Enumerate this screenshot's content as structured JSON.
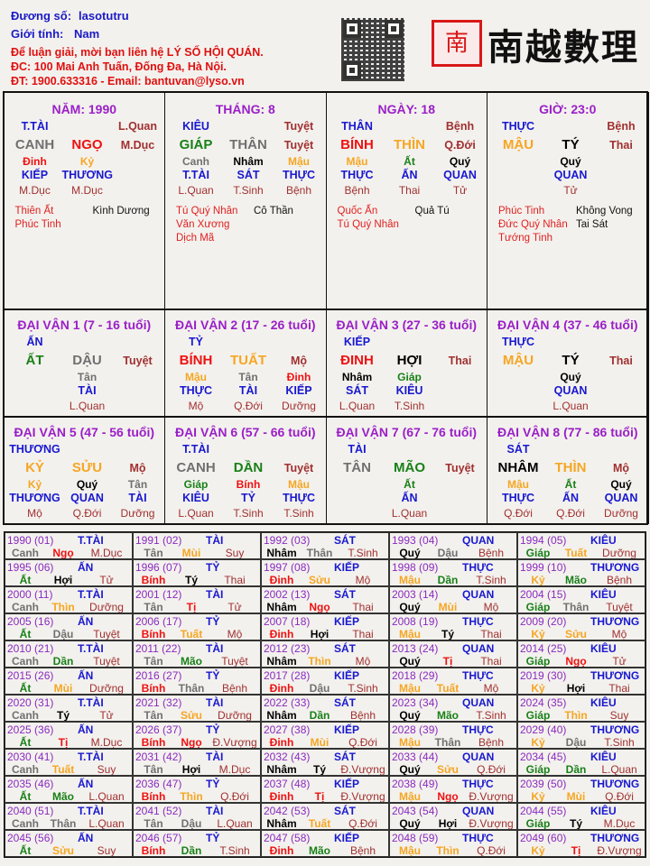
{
  "header": {
    "chart_name_label": "Đương số:",
    "chart_name": "lasotutru",
    "gender_label": "Giới tính:",
    "gender": "Nam",
    "contact": [
      "Để luận giải, mời bạn liên hệ LÝ SỐ HỘI QUÁN.",
      "ĐC: 100 Mai Anh Tuấn, Đống Đa, Hà Nội.",
      "ĐT: 1900.633316 - Email: bantuvan@lyso.vn"
    ]
  },
  "logo": {
    "text": "南越數理",
    "seal": "南"
  },
  "colors": {
    "title": "#9a1fc8",
    "god": "#1818d0",
    "phase": "#a03030",
    "good_star": "#e02020",
    "year_label": "#8a2ac0"
  },
  "element_colors": {
    "metal": "#707070",
    "wood": "#188018",
    "fire": "#ee1111",
    "earth": "#f5a623",
    "water": "#000000"
  },
  "elements": {
    "canh": "metal",
    "tân": "metal",
    "thân": "metal",
    "dậu": "metal",
    "giáp": "wood",
    "ất": "wood",
    "dần": "wood",
    "mão": "wood",
    "bính": "fire",
    "đinh": "fire",
    "ngọ": "fire",
    "tị": "fire",
    "mậu": "earth",
    "kỷ": "earth",
    "thìn": "earth",
    "tuất": "earth",
    "sửu": "earth",
    "mùi": "earth",
    "nhâm": "water",
    "quý": "water",
    "tý": "water",
    "hợi": "water"
  },
  "pillars": [
    {
      "title": "NĂM: 1990",
      "god": "T.TÀI",
      "phase_top": "L.Quan",
      "stem": "CANH",
      "branch": "NGỌ",
      "phase": "M.Dục",
      "hidden": [
        "Đinh",
        "Kỷ",
        ""
      ],
      "hidden_gods": [
        "KIẾP",
        "THƯƠNG",
        ""
      ],
      "hidden_phases": [
        "M.Dục",
        "M.Dục",
        ""
      ],
      "stars_good": [
        "Thiên Ất",
        "Phúc Tinh"
      ],
      "stars_bad": [
        "Kình Dương"
      ]
    },
    {
      "title": "THÁNG: 8",
      "god": "KIÊU",
      "phase_top": "Tuyệt",
      "stem": "GIÁP",
      "branch": "THÂN",
      "phase": "Tuyệt",
      "hidden": [
        "Canh",
        "Nhâm",
        "Mậu"
      ],
      "hidden_gods": [
        "T.TÀI",
        "SÁT",
        "THỰC"
      ],
      "hidden_phases": [
        "L.Quan",
        "T.Sinh",
        "Bệnh"
      ],
      "stars_good": [
        "Tú Quý Nhân",
        "Văn Xương",
        "Dịch Mã"
      ],
      "stars_bad": [
        "Cô Thần"
      ]
    },
    {
      "title": "NGÀY: 18",
      "god": "THÂN",
      "phase_top": "Bệnh",
      "stem": "BÍNH",
      "branch": "THÌN",
      "phase": "Q.Đới",
      "hidden": [
        "Mậu",
        "Ất",
        "Quý"
      ],
      "hidden_gods": [
        "THỰC",
        "ẤN",
        "QUAN"
      ],
      "hidden_phases": [
        "Bệnh",
        "Thai",
        "Tử"
      ],
      "stars_good": [
        "Quốc Ấn",
        "Tú Quý Nhân"
      ],
      "stars_bad": [
        "Quả Tú"
      ]
    },
    {
      "title": "GIỜ: 23:0",
      "god": "THỰC",
      "phase_top": "Bệnh",
      "stem": "MẬU",
      "branch": "TÝ",
      "phase": "Thai",
      "hidden": [
        "",
        "Quý",
        ""
      ],
      "hidden_gods": [
        "",
        "QUAN",
        ""
      ],
      "hidden_phases": [
        "",
        "Tử",
        ""
      ],
      "stars_good": [
        "Phúc Tinh",
        "Đức Quý Nhân",
        "Tướng Tinh"
      ],
      "stars_bad": [
        "Không Vong",
        "Tai Sát"
      ]
    }
  ],
  "dai_van": [
    {
      "title": "ĐẠI VẬN 1 (7 - 16 tuổi)",
      "god": "ẤN",
      "stem": "ẤT",
      "branch": "DẬU",
      "phase": "Tuyệt",
      "hidden": [
        "",
        "Tân",
        ""
      ],
      "hidden_gods": [
        "",
        "TÀI",
        ""
      ],
      "hidden_phases": [
        "",
        "L.Quan",
        ""
      ]
    },
    {
      "title": "ĐẠI VẬN 2 (17 - 26 tuổi)",
      "god": "TỶ",
      "stem": "BÍNH",
      "branch": "TUẤT",
      "phase": "Mộ",
      "hidden": [
        "Mậu",
        "Tân",
        "Đinh"
      ],
      "hidden_gods": [
        "THỰC",
        "TÀI",
        "KIẾP"
      ],
      "hidden_phases": [
        "Mộ",
        "Q.Đới",
        "Dưỡng"
      ]
    },
    {
      "title": "ĐẠI VẬN 3 (27 - 36 tuổi)",
      "god": "KIẾP",
      "stem": "ĐINH",
      "branch": "HỢI",
      "phase": "Thai",
      "hidden": [
        "Nhâm",
        "Giáp",
        ""
      ],
      "hidden_gods": [
        "SÁT",
        "KIÊU",
        ""
      ],
      "hidden_phases": [
        "L.Quan",
        "T.Sinh",
        ""
      ]
    },
    {
      "title": "ĐẠI VẬN 4 (37 - 46 tuổi)",
      "god": "THỰC",
      "stem": "MẬU",
      "branch": "TÝ",
      "phase": "Thai",
      "hidden": [
        "",
        "Quý",
        ""
      ],
      "hidden_gods": [
        "",
        "QUAN",
        ""
      ],
      "hidden_phases": [
        "",
        "L.Quan",
        ""
      ]
    },
    {
      "title": "ĐẠI VẬN 5 (47 - 56 tuổi)",
      "god": "THƯƠNG",
      "stem": "KỶ",
      "branch": "SỬU",
      "phase": "Mộ",
      "hidden": [
        "Kỷ",
        "Quý",
        "Tân"
      ],
      "hidden_gods": [
        "THƯƠNG",
        "QUAN",
        "TÀI"
      ],
      "hidden_phases": [
        "Mộ",
        "Q.Đới",
        "Dưỡng"
      ]
    },
    {
      "title": "ĐẠI VẬN 6 (57 - 66 tuổi)",
      "god": "T.TÀI",
      "stem": "CANH",
      "branch": "DẦN",
      "phase": "Tuyệt",
      "hidden": [
        "Giáp",
        "Bính",
        "Mậu"
      ],
      "hidden_gods": [
        "KIÊU",
        "TỶ",
        "THỰC"
      ],
      "hidden_phases": [
        "L.Quan",
        "T.Sinh",
        "T.Sinh"
      ]
    },
    {
      "title": "ĐẠI VẬN 7 (67 - 76 tuổi)",
      "god": "TÀI",
      "stem": "TÂN",
      "branch": "MÃO",
      "phase": "Tuyệt",
      "hidden": [
        "",
        "Ất",
        ""
      ],
      "hidden_gods": [
        "",
        "ẤN",
        ""
      ],
      "hidden_phases": [
        "",
        "L.Quan",
        ""
      ]
    },
    {
      "title": "ĐẠI VẬN 8 (77 - 86 tuổi)",
      "god": "SÁT",
      "stem": "NHÂM",
      "branch": "THÌN",
      "phase": "Mộ",
      "hidden": [
        "Mậu",
        "Ất",
        "Quý"
      ],
      "hidden_gods": [
        "THỰC",
        "ẤN",
        "QUAN"
      ],
      "hidden_phases": [
        "Q.Đới",
        "Q.Đới",
        "Dưỡng"
      ]
    }
  ],
  "years": [
    [
      "1990 (01)",
      "T.TÀI",
      "Canh",
      "Ngọ",
      "M.Dục"
    ],
    [
      "1991 (02)",
      "TÀI",
      "Tân",
      "Mùi",
      "Suy"
    ],
    [
      "1992 (03)",
      "SÁT",
      "Nhâm",
      "Thân",
      "T.Sinh"
    ],
    [
      "1993 (04)",
      "QUAN",
      "Quý",
      "Dậu",
      "Bệnh"
    ],
    [
      "1994 (05)",
      "KIÊU",
      "Giáp",
      "Tuất",
      "Dưỡng"
    ],
    [
      "1995 (06)",
      "ẤN",
      "Ất",
      "Hợi",
      "Tử"
    ],
    [
      "1996 (07)",
      "TỶ",
      "Bính",
      "Tý",
      "Thai"
    ],
    [
      "1997 (08)",
      "KIẾP",
      "Đinh",
      "Sửu",
      "Mộ"
    ],
    [
      "1998 (09)",
      "THỰC",
      "Mậu",
      "Dần",
      "T.Sinh"
    ],
    [
      "1999 (10)",
      "THƯƠNG",
      "Kỷ",
      "Mão",
      "Bệnh"
    ],
    [
      "2000 (11)",
      "T.TÀI",
      "Canh",
      "Thìn",
      "Dưỡng"
    ],
    [
      "2001 (12)",
      "TÀI",
      "Tân",
      "Tị",
      "Tử"
    ],
    [
      "2002 (13)",
      "SÁT",
      "Nhâm",
      "Ngọ",
      "Thai"
    ],
    [
      "2003 (14)",
      "QUAN",
      "Quý",
      "Mùi",
      "Mộ"
    ],
    [
      "2004 (15)",
      "KIÊU",
      "Giáp",
      "Thân",
      "Tuyệt"
    ],
    [
      "2005 (16)",
      "ẤN",
      "Ất",
      "Dậu",
      "Tuyệt"
    ],
    [
      "2006 (17)",
      "TỶ",
      "Bính",
      "Tuất",
      "Mộ"
    ],
    [
      "2007 (18)",
      "KIẾP",
      "Đinh",
      "Hợi",
      "Thai"
    ],
    [
      "2008 (19)",
      "THỰC",
      "Mậu",
      "Tý",
      "Thai"
    ],
    [
      "2009 (20)",
      "THƯƠNG",
      "Kỷ",
      "Sửu",
      "Mộ"
    ],
    [
      "2010 (21)",
      "T.TÀI",
      "Canh",
      "Dần",
      "Tuyệt"
    ],
    [
      "2011 (22)",
      "TÀI",
      "Tân",
      "Mão",
      "Tuyệt"
    ],
    [
      "2012 (23)",
      "SÁT",
      "Nhâm",
      "Thìn",
      "Mộ"
    ],
    [
      "2013 (24)",
      "QUAN",
      "Quý",
      "Tị",
      "Thai"
    ],
    [
      "2014 (25)",
      "KIÊU",
      "Giáp",
      "Ngọ",
      "Tử"
    ],
    [
      "2015 (26)",
      "ẤN",
      "Ất",
      "Mùi",
      "Dưỡng"
    ],
    [
      "2016 (27)",
      "TỶ",
      "Bính",
      "Thân",
      "Bệnh"
    ],
    [
      "2017 (28)",
      "KIẾP",
      "Đinh",
      "Dậu",
      "T.Sinh"
    ],
    [
      "2018 (29)",
      "THỰC",
      "Mậu",
      "Tuất",
      "Mộ"
    ],
    [
      "2019 (30)",
      "THƯƠNG",
      "Kỷ",
      "Hợi",
      "Thai"
    ],
    [
      "2020 (31)",
      "T.TÀI",
      "Canh",
      "Tý",
      "Tử"
    ],
    [
      "2021 (32)",
      "TÀI",
      "Tân",
      "Sửu",
      "Dưỡng"
    ],
    [
      "2022 (33)",
      "SÁT",
      "Nhâm",
      "Dần",
      "Bệnh"
    ],
    [
      "2023 (34)",
      "QUAN",
      "Quý",
      "Mão",
      "T.Sinh"
    ],
    [
      "2024 (35)",
      "KIÊU",
      "Giáp",
      "Thìn",
      "Suy"
    ],
    [
      "2025 (36)",
      "ẤN",
      "Ất",
      "Tị",
      "M.Dục"
    ],
    [
      "2026 (37)",
      "TỶ",
      "Bính",
      "Ngọ",
      "Đ.Vượng"
    ],
    [
      "2027 (38)",
      "KIẾP",
      "Đinh",
      "Mùi",
      "Q.Đới"
    ],
    [
      "2028 (39)",
      "THỰC",
      "Mậu",
      "Thân",
      "Bệnh"
    ],
    [
      "2029 (40)",
      "THƯƠNG",
      "Kỷ",
      "Dậu",
      "T.Sinh"
    ],
    [
      "2030 (41)",
      "T.TÀI",
      "Canh",
      "Tuất",
      "Suy"
    ],
    [
      "2031 (42)",
      "TÀI",
      "Tân",
      "Hợi",
      "M.Dục"
    ],
    [
      "2032 (43)",
      "SÁT",
      "Nhâm",
      "Tý",
      "Đ.Vượng"
    ],
    [
      "2033 (44)",
      "QUAN",
      "Quý",
      "Sửu",
      "Q.Đới"
    ],
    [
      "2034 (45)",
      "KIÊU",
      "Giáp",
      "Dần",
      "L.Quan"
    ],
    [
      "2035 (46)",
      "ẤN",
      "Ất",
      "Mão",
      "L.Quan"
    ],
    [
      "2036 (47)",
      "TỶ",
      "Bính",
      "Thìn",
      "Q.Đới"
    ],
    [
      "2037 (48)",
      "KIẾP",
      "Đinh",
      "Tị",
      "Đ.Vượng"
    ],
    [
      "2038 (49)",
      "THỰC",
      "Mậu",
      "Ngọ",
      "Đ.Vượng"
    ],
    [
      "2039 (50)",
      "THƯƠNG",
      "Kỷ",
      "Mùi",
      "Q.Đới"
    ],
    [
      "2040 (51)",
      "T.TÀI",
      "Canh",
      "Thân",
      "L.Quan"
    ],
    [
      "2041 (52)",
      "TÀI",
      "Tân",
      "Dậu",
      "L.Quan"
    ],
    [
      "2042 (53)",
      "SÁT",
      "Nhâm",
      "Tuất",
      "Q.Đới"
    ],
    [
      "2043 (54)",
      "QUAN",
      "Quý",
      "Hợi",
      "Đ.Vượng"
    ],
    [
      "2044 (55)",
      "KIÊU",
      "Giáp",
      "Tý",
      "M.Dục"
    ],
    [
      "2045 (56)",
      "ẤN",
      "Ất",
      "Sửu",
      "Suy"
    ],
    [
      "2046 (57)",
      "TỶ",
      "Bính",
      "Dần",
      "T.Sinh"
    ],
    [
      "2047 (58)",
      "KIẾP",
      "Đinh",
      "Mão",
      "Bệnh"
    ],
    [
      "2048 (59)",
      "THỰC",
      "Mậu",
      "Thìn",
      "Q.Đới"
    ],
    [
      "2049 (60)",
      "THƯƠNG",
      "Kỷ",
      "Tị",
      "Đ.Vượng"
    ]
  ]
}
